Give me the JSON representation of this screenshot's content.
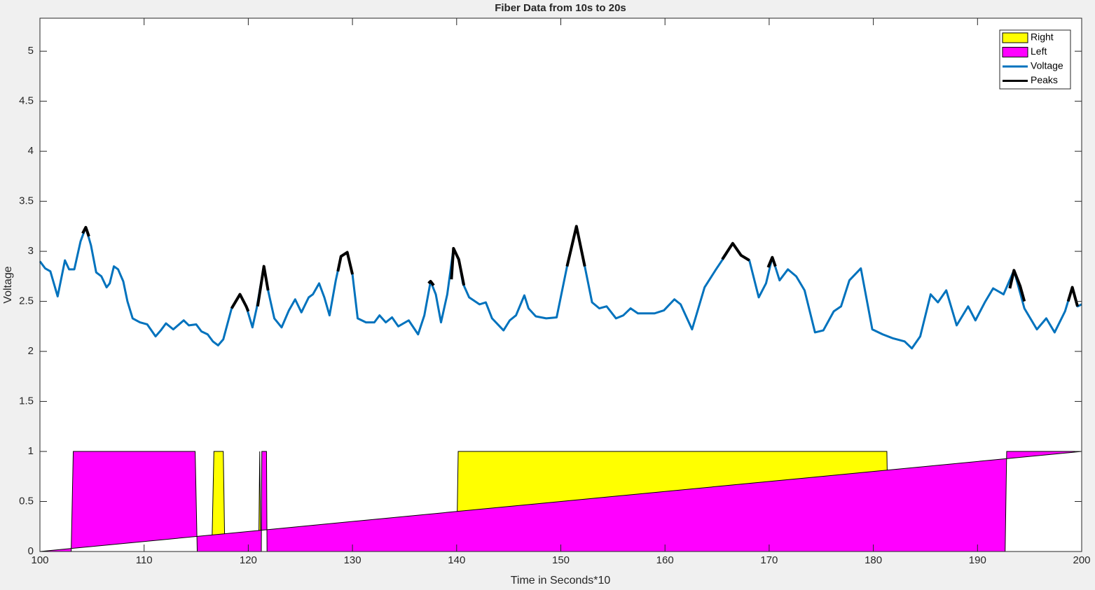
{
  "chart_data": {
    "type": "line",
    "title": "Fiber Data from 10s to 20s",
    "x_label": "Time in Seconds*10",
    "y_label": "Voltage",
    "xlim": [
      100,
      200
    ],
    "ylim": [
      0,
      5.33
    ],
    "xticks": [
      100,
      110,
      120,
      130,
      140,
      150,
      160,
      170,
      180,
      190,
      200
    ],
    "yticks": [
      0,
      0.5,
      1,
      1.5,
      2,
      2.5,
      3,
      3.5,
      4,
      4.5,
      5
    ],
    "grid": false,
    "legend": "northeast",
    "series": [
      {
        "name": "Right",
        "type": "area",
        "color": "#ffff00",
        "x": [
          100,
          116.5,
          116.7,
          117.6,
          117.75,
          121.0,
          121.1,
          121.2,
          140.0,
          140.15,
          181.3,
          181.45,
          200
        ],
        "values": [
          0,
          0,
          1,
          1,
          0,
          0,
          1,
          0,
          0,
          1,
          1,
          0,
          0
        ]
      },
      {
        "name": "Left",
        "type": "area",
        "color": "#ff00ff",
        "x": [
          100,
          103.0,
          103.2,
          114.9,
          115.1,
          121.25,
          121.3,
          121.75,
          121.8,
          192.65,
          192.8,
          200
        ],
        "values": [
          0,
          0,
          1,
          1,
          0,
          0,
          1,
          1,
          0,
          0,
          1,
          1
        ]
      },
      {
        "name": "Voltage",
        "type": "line",
        "color": "#0072bd",
        "x": [
          100,
          100.5,
          101,
          101.7,
          102.4,
          102.8,
          103.3,
          103.9,
          104.4,
          104.9,
          105.4,
          105.9,
          106.4,
          106.7,
          107.1,
          107.5,
          108.0,
          108.4,
          108.9,
          109.6,
          110.3,
          111.1,
          111.6,
          112.1,
          112.8,
          113.8,
          114.3,
          115.0,
          115.5,
          116.1,
          116.6,
          117.1,
          117.6,
          118.4,
          119.2,
          119.8,
          120.4,
          120.8,
          121.5,
          121.9,
          122.5,
          123.2,
          123.9,
          124.5,
          125.1,
          125.8,
          126.2,
          126.8,
          127.3,
          127.8,
          128.4,
          128.9,
          129.5,
          130.0,
          130.5,
          131.3,
          132.1,
          132.6,
          133.2,
          133.8,
          134.4,
          135.4,
          136.3,
          136.9,
          137.5,
          138.0,
          138.5,
          139.1,
          139.7,
          140.2,
          140.6,
          141.2,
          142.2,
          142.8,
          143.4,
          144.5,
          145.1,
          145.7,
          146.5,
          146.9,
          147.6,
          148.6,
          149.6,
          150.6,
          151.5,
          152.3,
          153.0,
          153.7,
          154.4,
          155.3,
          156.0,
          156.7,
          157.4,
          159.0,
          159.9,
          160.9,
          161.5,
          162.6,
          163.8,
          164.9,
          165.8,
          166.5,
          167.3,
          168.1,
          169.0,
          169.7,
          170.3,
          171.0,
          171.8,
          172.6,
          173.4,
          174.4,
          175.2,
          176.2,
          176.9,
          177.7,
          178.8,
          179.9,
          180.9,
          181.9,
          183.0,
          183.7,
          184.5,
          185.5,
          186.2,
          187.0,
          188.0,
          189.1,
          189.8,
          190.7,
          191.5,
          192.5,
          193.5,
          194.5,
          195.7,
          196.6,
          197.4,
          198.4,
          199.1,
          199.6,
          200.0
        ],
        "values": [
          2.9,
          2.83,
          2.8,
          2.55,
          2.91,
          2.82,
          2.82,
          3.1,
          3.24,
          3.06,
          2.79,
          2.75,
          2.64,
          2.68,
          2.85,
          2.82,
          2.7,
          2.5,
          2.33,
          2.29,
          2.27,
          2.15,
          2.21,
          2.28,
          2.22,
          2.31,
          2.26,
          2.27,
          2.2,
          2.17,
          2.1,
          2.06,
          2.12,
          2.43,
          2.57,
          2.45,
          2.24,
          2.43,
          2.85,
          2.61,
          2.33,
          2.24,
          2.41,
          2.52,
          2.39,
          2.54,
          2.57,
          2.68,
          2.54,
          2.36,
          2.71,
          2.95,
          2.99,
          2.77,
          2.33,
          2.29,
          2.29,
          2.36,
          2.29,
          2.34,
          2.25,
          2.31,
          2.17,
          2.36,
          2.7,
          2.57,
          2.29,
          2.57,
          3.03,
          2.92,
          2.68,
          2.54,
          2.47,
          2.49,
          2.33,
          2.21,
          2.31,
          2.36,
          2.56,
          2.43,
          2.35,
          2.33,
          2.34,
          2.85,
          3.25,
          2.85,
          2.49,
          2.43,
          2.45,
          2.33,
          2.36,
          2.43,
          2.38,
          2.38,
          2.41,
          2.52,
          2.47,
          2.22,
          2.64,
          2.82,
          2.96,
          3.08,
          2.96,
          2.91,
          2.54,
          2.68,
          2.94,
          2.71,
          2.82,
          2.75,
          2.61,
          2.19,
          2.21,
          2.4,
          2.45,
          2.71,
          2.83,
          2.22,
          2.17,
          2.13,
          2.1,
          2.03,
          2.15,
          2.57,
          2.49,
          2.61,
          2.26,
          2.45,
          2.31,
          2.49,
          2.63,
          2.57,
          2.81,
          2.43,
          2.22,
          2.33,
          2.19,
          2.4,
          2.64,
          2.45,
          2.47
        ]
      },
      {
        "name": "Peaks",
        "type": "line",
        "color": "#000000",
        "x": [
          104.1,
          104.4,
          104.7,
          110,
          118.4,
          119.2,
          119.8,
          120.0,
          120.5,
          120.9,
          121.5,
          121.9,
          125,
          128.6,
          128.9,
          129.5,
          130.0,
          133,
          137.3,
          137.5,
          137.8,
          138.5,
          139.5,
          139.7,
          140.2,
          140.7,
          145,
          150.6,
          151.5,
          152.3,
          160,
          165.5,
          166.5,
          167.3,
          168.1,
          169,
          169.9,
          170.3,
          170.6,
          180,
          193.1,
          193.5,
          194.1,
          194.5,
          196,
          198.7,
          199.1,
          199.6
        ],
        "values": [
          3.18,
          3.24,
          3.15,
          null,
          2.43,
          2.57,
          2.45,
          2.4,
          null,
          2.45,
          2.85,
          2.61,
          null,
          2.8,
          2.95,
          2.99,
          2.77,
          null,
          2.68,
          2.7,
          2.66,
          null,
          2.72,
          3.03,
          2.92,
          2.66,
          null,
          2.85,
          3.25,
          2.85,
          null,
          2.92,
          3.08,
          2.96,
          2.91,
          null,
          2.84,
          2.94,
          2.85,
          null,
          2.63,
          2.81,
          2.65,
          2.5,
          null,
          2.5,
          2.64,
          2.45
        ]
      }
    ]
  }
}
